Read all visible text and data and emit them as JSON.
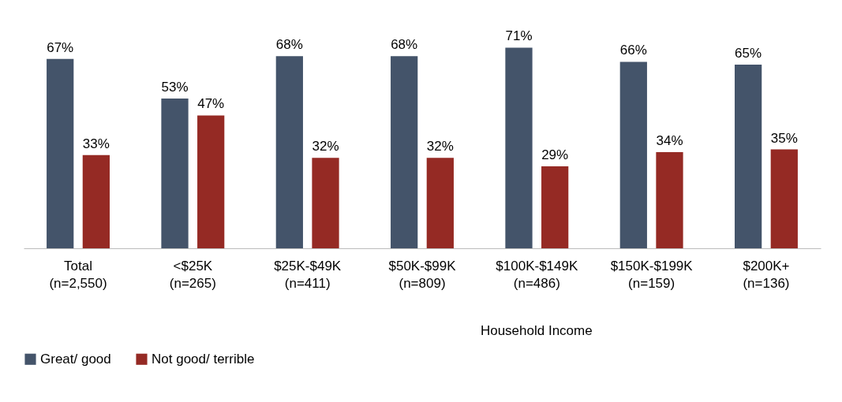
{
  "chart_data": {
    "type": "bar",
    "xlabel": "Household Income",
    "categories": [
      "Total\n(n=2,550)",
      "<$25K\n(n=265)",
      "$25K-$49K\n(n=411)",
      "$50K-$99K\n(n=809)",
      "$100K-$149K\n(n=486)",
      "$150K-$199K\n(n=159)",
      "$200K+\n(n=136)"
    ],
    "series": [
      {
        "name": "Great/ good",
        "color": "#44546a",
        "values": [
          67,
          53,
          68,
          68,
          71,
          66,
          65
        ],
        "value_labels": [
          "67%",
          "53%",
          "68%",
          "68%",
          "71%",
          "66%",
          "65%"
        ]
      },
      {
        "name": "Not good/ terrible",
        "color": "#952a24",
        "values": [
          33,
          47,
          32,
          32,
          29,
          34,
          35
        ],
        "value_labels": [
          "33%",
          "47%",
          "32%",
          "32%",
          "29%",
          "34%",
          "35%"
        ]
      }
    ],
    "legend": "bottom"
  }
}
